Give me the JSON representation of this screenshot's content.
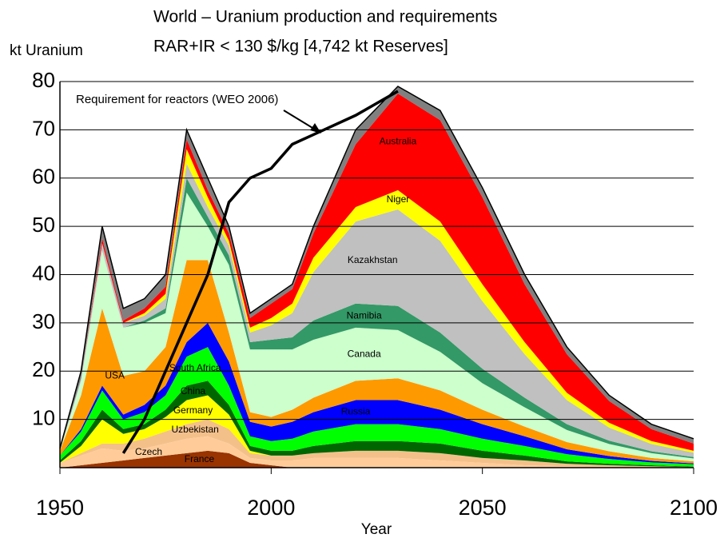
{
  "chart_data": {
    "type": "stacked_area",
    "title": "World – Uranium production and requirements",
    "subtitle": "RAR+IR < 130 $/kg [4,742 kt Reserves]",
    "y_label": "kt Uranium",
    "x_label": "Year",
    "x": [
      1950,
      1955,
      1960,
      1965,
      1970,
      1975,
      1980,
      1985,
      1990,
      1995,
      2000,
      2005,
      2010,
      2020,
      2030,
      2040,
      2050,
      2060,
      2070,
      2080,
      2090,
      2100
    ],
    "xlim": [
      1950,
      2100
    ],
    "xticks": [
      1950,
      2000,
      2050,
      2100
    ],
    "ylim": [
      0,
      80
    ],
    "yticks": [
      10,
      20,
      30,
      40,
      50,
      60,
      70,
      80
    ],
    "grid": true,
    "series": [
      {
        "name": "France",
        "color": "#993300",
        "values": [
          0,
          0.5,
          1,
          1.5,
          2,
          2.5,
          3,
          3.5,
          3,
          1,
          0.5,
          0,
          0,
          0,
          0,
          0,
          0,
          0,
          0,
          0,
          0,
          0
        ]
      },
      {
        "name": "Czech",
        "color": "#ffcc99",
        "values": [
          1,
          2,
          3,
          2,
          2,
          2.5,
          3,
          3,
          2,
          1,
          1,
          1.5,
          2,
          2,
          2,
          1.5,
          1,
          0.5,
          0.3,
          0.2,
          0.1,
          0
        ]
      },
      {
        "name": "Uzbekistan",
        "color": "#f4c08a",
        "values": [
          0,
          0.5,
          1,
          1.5,
          2,
          2.5,
          3,
          3.5,
          3,
          1,
          1,
          1,
          1,
          1.5,
          1.5,
          1.5,
          1,
          1,
          0.5,
          0.3,
          0.2,
          0.1
        ]
      },
      {
        "name": "Germany",
        "color": "#ffff00",
        "values": [
          0,
          1.5,
          5,
          2,
          2,
          3,
          5,
          5,
          3,
          0.5,
          0,
          0,
          0,
          0,
          0,
          0,
          0,
          0,
          0,
          0,
          0,
          0
        ]
      },
      {
        "name": "China",
        "color": "#006600",
        "values": [
          0.5,
          1,
          2,
          1,
          1,
          1.5,
          3,
          3,
          2,
          1,
          1,
          1,
          1.5,
          2,
          2,
          2,
          1.5,
          1,
          0.5,
          0.3,
          0.2,
          0.1
        ]
      },
      {
        "name": "South Africa",
        "color": "#00ff00",
        "values": [
          1,
          2,
          4,
          2,
          2.5,
          3,
          6,
          7,
          4,
          2,
          2,
          2.5,
          3,
          3.5,
          3.5,
          3,
          2.5,
          2,
          1.5,
          1,
          0.6,
          0.5
        ]
      },
      {
        "name": "Russia",
        "color": "#0000ff",
        "values": [
          0,
          0.5,
          1,
          1,
          1.5,
          2,
          3,
          5,
          5,
          3,
          3,
          3.5,
          4,
          5,
          5,
          4,
          3,
          2,
          1,
          0.6,
          0.3,
          0.2
        ]
      },
      {
        "name": "USA",
        "color": "#ff9900",
        "values": [
          1,
          7,
          16,
          8,
          7,
          8,
          17,
          13,
          6,
          2,
          2,
          2.5,
          3,
          4,
          4.5,
          4,
          3,
          2,
          1.5,
          1,
          0.6,
          0.4
        ]
      },
      {
        "name": "Canada",
        "color": "#ccffcc",
        "values": [
          0,
          3,
          12,
          10,
          10,
          7,
          14,
          7,
          14,
          13,
          14,
          12.5,
          12,
          11,
          10,
          8,
          5.5,
          4,
          2.5,
          1.5,
          1,
          0.6
        ]
      },
      {
        "name": "Namibia",
        "color": "#339966",
        "values": [
          0,
          0,
          0,
          0,
          0.5,
          1,
          3,
          2,
          2,
          1.5,
          2,
          2.5,
          4,
          5,
          5,
          4,
          3,
          2,
          1.2,
          0.7,
          0.4,
          0.3
        ]
      },
      {
        "name": "Kazakhstan",
        "color": "#c0c0c0",
        "values": [
          0,
          0.5,
          1.5,
          1,
          1,
          2,
          3,
          2,
          2,
          2,
          3,
          5,
          10,
          17,
          20,
          19,
          14,
          9,
          5,
          2.7,
          1.5,
          0.9
        ]
      },
      {
        "name": "Niger",
        "color": "#ffff00",
        "values": [
          0,
          0,
          0,
          0,
          0.5,
          1,
          3,
          2,
          1,
          1,
          1.5,
          2,
          3,
          3,
          4,
          4,
          3.5,
          2.5,
          1.5,
          1,
          0.6,
          0.4
        ]
      },
      {
        "name": "Australia",
        "color": "#ff0000",
        "values": [
          0,
          0,
          1,
          0.5,
          1,
          1.5,
          2,
          1.5,
          1.5,
          2,
          3,
          3,
          5,
          13,
          20,
          21,
          18,
          12,
          8,
          4.5,
          2.5,
          1.5
        ]
      },
      {
        "color": "#808080",
        "values": [
          0.5,
          1.5,
          2.5,
          2.5,
          2,
          2.5,
          2,
          2.5,
          1.5,
          1,
          1,
          1,
          1.5,
          3,
          1.5,
          2,
          2,
          2,
          1.5,
          1.2,
          1,
          1
        ]
      }
    ],
    "line": {
      "name": "Requirement for reactors (WEO 2006)",
      "color": "#000000",
      "values": [
        null,
        null,
        null,
        3,
        10,
        20,
        30,
        40,
        55,
        60,
        62,
        67,
        69,
        73,
        78,
        null,
        null,
        null,
        null,
        null,
        null,
        null
      ]
    }
  }
}
